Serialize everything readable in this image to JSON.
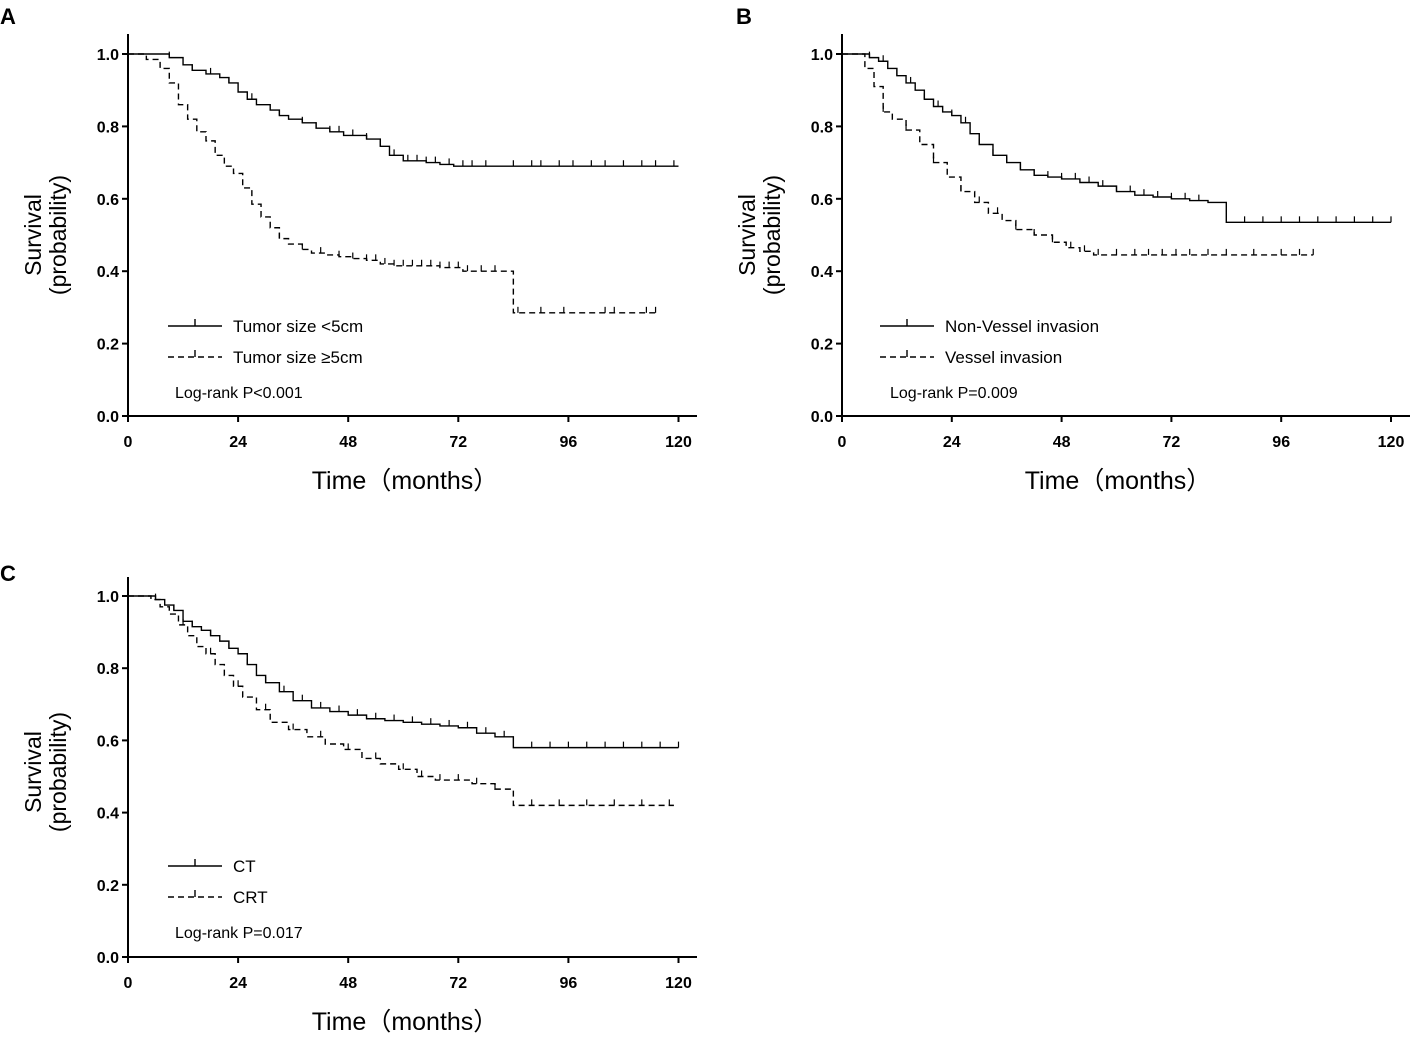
{
  "chart_data": [
    {
      "panel": "A",
      "type": "line",
      "step": true,
      "xlabel": "Time（months）",
      "ylabel": [
        "Survival",
        "(probability)"
      ],
      "xlim": [
        0,
        124
      ],
      "ylim": [
        0,
        1.05
      ],
      "xticks": [
        0,
        24,
        48,
        72,
        96,
        120
      ],
      "yticks": [
        "0.0",
        "0.2",
        "0.4",
        "0.6",
        "0.8",
        "1.0"
      ],
      "pvalue": "Log-rank P<0.001",
      "series": [
        {
          "name": "Tumor size <5cm",
          "style": "solid",
          "x": [
            0,
            9,
            12,
            14,
            17,
            20,
            22,
            24,
            26,
            28,
            31,
            33,
            35,
            38,
            41,
            44,
            47,
            52,
            55,
            57,
            60,
            62,
            65,
            68,
            71,
            74,
            78,
            82,
            86,
            90,
            95,
            100,
            105,
            110,
            115,
            120
          ],
          "y": [
            1.0,
            0.99,
            0.97,
            0.955,
            0.945,
            0.935,
            0.92,
            0.895,
            0.875,
            0.86,
            0.845,
            0.83,
            0.82,
            0.81,
            0.795,
            0.785,
            0.775,
            0.765,
            0.745,
            0.72,
            0.705,
            0.705,
            0.7,
            0.695,
            0.69,
            0.69,
            0.69,
            0.69,
            0.69,
            0.69,
            0.69,
            0.69,
            0.69,
            0.69,
            0.69,
            0.69
          ],
          "censor_x": [
            9,
            14,
            18,
            22,
            27,
            33,
            38,
            41,
            44,
            46,
            49,
            52,
            55,
            58,
            61,
            63,
            65,
            67,
            70,
            73,
            75,
            78,
            84,
            88,
            90,
            94,
            97,
            101,
            104,
            108,
            112,
            115,
            119
          ]
        },
        {
          "name": "Tumor size ≥5cm",
          "style": "dashed",
          "x": [
            0,
            4,
            7,
            9,
            11,
            13,
            15,
            17,
            19,
            21,
            23,
            25,
            27,
            29,
            31,
            33,
            35,
            38,
            40,
            43,
            46,
            49,
            52,
            55,
            58,
            63,
            68,
            73,
            80,
            84,
            90,
            96,
            100,
            106,
            110,
            115
          ],
          "y": [
            1.0,
            0.985,
            0.96,
            0.92,
            0.86,
            0.82,
            0.785,
            0.76,
            0.72,
            0.69,
            0.67,
            0.63,
            0.585,
            0.55,
            0.52,
            0.49,
            0.475,
            0.46,
            0.45,
            0.445,
            0.44,
            0.435,
            0.43,
            0.42,
            0.415,
            0.415,
            0.41,
            0.4,
            0.4,
            0.285,
            0.285,
            0.285,
            0.285,
            0.285,
            0.285,
            0.285
          ],
          "censor_x": [
            33,
            38,
            42,
            46,
            49,
            52,
            54,
            56,
            58,
            60,
            62,
            64,
            66,
            68,
            70,
            72,
            74,
            77,
            80,
            85,
            90,
            95,
            104,
            106,
            113,
            115
          ]
        }
      ]
    },
    {
      "panel": "B",
      "type": "line",
      "step": true,
      "xlabel": "Time（months）",
      "ylabel": [
        "Survival",
        "(probability)"
      ],
      "xlim": [
        0,
        124
      ],
      "ylim": [
        0,
        1.05
      ],
      "xticks": [
        0,
        24,
        48,
        72,
        96,
        120
      ],
      "yticks": [
        "0.0",
        "0.2",
        "0.4",
        "0.6",
        "0.8",
        "1.0"
      ],
      "pvalue": "Log-rank P=0.009",
      "series": [
        {
          "name": "Non-Vessel invasion",
          "style": "solid",
          "x": [
            0,
            6,
            8,
            10,
            12,
            14,
            16,
            18,
            20,
            22,
            24,
            26,
            28,
            30,
            33,
            36,
            39,
            42,
            45,
            48,
            52,
            56,
            60,
            64,
            68,
            72,
            76,
            80,
            84,
            90,
            96,
            100,
            105,
            110,
            115,
            120
          ],
          "y": [
            1.0,
            0.99,
            0.98,
            0.96,
            0.94,
            0.92,
            0.9,
            0.875,
            0.855,
            0.84,
            0.83,
            0.81,
            0.78,
            0.75,
            0.72,
            0.7,
            0.68,
            0.665,
            0.66,
            0.655,
            0.645,
            0.635,
            0.62,
            0.61,
            0.605,
            0.6,
            0.595,
            0.59,
            0.535,
            0.535,
            0.535,
            0.535,
            0.535,
            0.535,
            0.535,
            0.535
          ],
          "censor_x": [
            6,
            9,
            12,
            15,
            18,
            21,
            24,
            27,
            30,
            33,
            36,
            39,
            42,
            45,
            48,
            51,
            54,
            57,
            60,
            63,
            66,
            69,
            72,
            75,
            78,
            88,
            92,
            96,
            100,
            104,
            108,
            112,
            116,
            120
          ]
        },
        {
          "name": "Vessel invasion",
          "style": "dashed",
          "x": [
            0,
            5,
            7,
            9,
            11,
            14,
            17,
            20,
            23,
            26,
            29,
            32,
            35,
            38,
            42,
            46,
            49,
            52,
            55,
            60,
            65,
            70,
            75,
            80,
            85,
            90,
            95,
            100,
            103
          ],
          "y": [
            1.0,
            0.96,
            0.91,
            0.84,
            0.82,
            0.79,
            0.75,
            0.7,
            0.66,
            0.62,
            0.59,
            0.56,
            0.54,
            0.515,
            0.5,
            0.48,
            0.465,
            0.455,
            0.445,
            0.445,
            0.445,
            0.445,
            0.445,
            0.445,
            0.445,
            0.445,
            0.445,
            0.445,
            0.445
          ],
          "censor_x": [
            9,
            14,
            20,
            26,
            30,
            34,
            38,
            42,
            46,
            50,
            53,
            56,
            60,
            64,
            67,
            70,
            73,
            76,
            80,
            84,
            90,
            96,
            100,
            103
          ]
        }
      ]
    },
    {
      "panel": "C",
      "type": "line",
      "step": true,
      "xlabel": "Time（months）",
      "ylabel": [
        "Survival",
        "(probability)"
      ],
      "xlim": [
        0,
        124
      ],
      "ylim": [
        0,
        1.05
      ],
      "xticks": [
        0,
        24,
        48,
        72,
        96,
        120
      ],
      "yticks": [
        "0.0",
        "0.2",
        "0.4",
        "0.6",
        "0.8",
        "1.0"
      ],
      "pvalue": "Log-rank P=0.017",
      "series": [
        {
          "name": "CT",
          "style": "solid",
          "x": [
            0,
            6,
            8,
            10,
            12,
            14,
            16,
            18,
            20,
            22,
            24,
            26,
            28,
            30,
            33,
            36,
            40,
            44,
            48,
            52,
            56,
            60,
            64,
            68,
            72,
            76,
            80,
            84,
            90,
            96,
            100,
            105,
            110,
            115,
            120
          ],
          "y": [
            1.0,
            0.99,
            0.975,
            0.96,
            0.93,
            0.915,
            0.905,
            0.89,
            0.875,
            0.855,
            0.84,
            0.81,
            0.78,
            0.76,
            0.735,
            0.71,
            0.69,
            0.68,
            0.67,
            0.66,
            0.655,
            0.65,
            0.645,
            0.64,
            0.635,
            0.62,
            0.61,
            0.58,
            0.58,
            0.58,
            0.58,
            0.58,
            0.58,
            0.58,
            0.58
          ],
          "censor_x": [
            6,
            10,
            14,
            18,
            22,
            26,
            30,
            34,
            38,
            42,
            46,
            50,
            54,
            58,
            62,
            66,
            70,
            74,
            78,
            82,
            88,
            92,
            96,
            100,
            104,
            108,
            112,
            116,
            120
          ]
        },
        {
          "name": "CRT",
          "style": "dashed",
          "x": [
            0,
            5,
            7,
            9,
            11,
            13,
            15,
            17,
            19,
            21,
            23,
            25,
            28,
            31,
            35,
            39,
            43,
            47,
            51,
            55,
            59,
            63,
            67,
            71,
            75,
            80,
            84,
            90,
            96,
            100,
            105,
            110,
            115,
            119
          ],
          "y": [
            1.0,
            0.99,
            0.97,
            0.95,
            0.92,
            0.89,
            0.86,
            0.84,
            0.81,
            0.78,
            0.75,
            0.72,
            0.685,
            0.65,
            0.63,
            0.61,
            0.59,
            0.575,
            0.55,
            0.535,
            0.52,
            0.5,
            0.49,
            0.49,
            0.48,
            0.465,
            0.42,
            0.42,
            0.42,
            0.42,
            0.42,
            0.42,
            0.42,
            0.42
          ],
          "censor_x": [
            12,
            18,
            24,
            30,
            36,
            42,
            48,
            54,
            60,
            64,
            68,
            72,
            76,
            80,
            88,
            94,
            100,
            106,
            112,
            118
          ]
        }
      ]
    }
  ]
}
